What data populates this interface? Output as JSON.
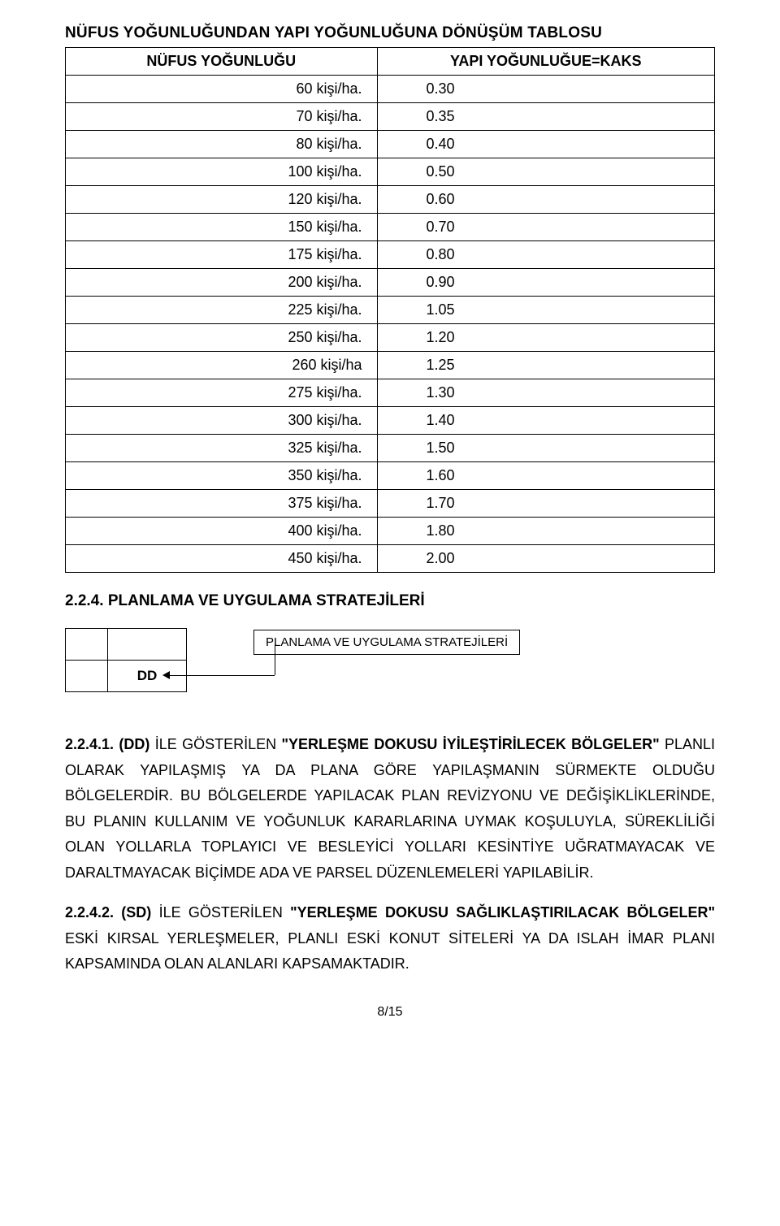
{
  "title": "NÜFUS YOĞUNLUĞUNDAN YAPI YOĞUNLUĞUNA DÖNÜŞÜM TABLOSU",
  "table": {
    "header_left": "NÜFUS YOĞUNLUĞU",
    "header_right": "YAPI YOĞUNLUĞUE=KAKS",
    "rows": [
      {
        "l": "60 kişi/ha.",
        "r": "0.30"
      },
      {
        "l": "70 kişi/ha.",
        "r": "0.35"
      },
      {
        "l": "80 kişi/ha.",
        "r": "0.40"
      },
      {
        "l": "100 kişi/ha.",
        "r": "0.50"
      },
      {
        "l": "120 kişi/ha.",
        "r": "0.60"
      },
      {
        "l": "150 kişi/ha.",
        "r": "0.70"
      },
      {
        "l": "175 kişi/ha.",
        "r": "0.80"
      },
      {
        "l": "200 kişi/ha.",
        "r": "0.90"
      },
      {
        "l": "225 kişi/ha.",
        "r": "1.05"
      },
      {
        "l": "250 kişi/ha.",
        "r": "1.20"
      },
      {
        "l": "260 kişi/ha",
        "r": "1.25"
      },
      {
        "l": "275 kişi/ha.",
        "r": "1.30"
      },
      {
        "l": "300 kişi/ha.",
        "r": "1.40"
      },
      {
        "l": "325 kişi/ha.",
        "r": "1.50"
      },
      {
        "l": "350 kişi/ha.",
        "r": "1.60"
      },
      {
        "l": "375 kişi/ha.",
        "r": "1.70"
      },
      {
        "l": "400 kişi/ha.",
        "r": "1.80"
      },
      {
        "l": "450 kişi/ha.",
        "r": "2.00"
      }
    ]
  },
  "section_heading": "2.2.4. PLANLAMA VE UYGULAMA STRATEJİLERİ",
  "diagram": {
    "dd_label": "DD",
    "callout": "PLANLAMA VE UYGULAMA STRATEJİLERİ"
  },
  "para1": {
    "lead": "2.2.4.1. (DD)",
    "mid1": " İLE GÖSTERİLEN ",
    "quoted": "\"YERLEŞME DOKUSU İYİLEŞTİRİLECEK BÖLGELER\"",
    "rest": " PLANLI OLARAK YAPILAŞMIŞ YA DA PLANA GÖRE YAPILAŞMANIN SÜRMEKTE OLDUĞU BÖLGELERDİR. BU BÖLGELERDE YAPILACAK PLAN REVİZYONU VE DEĞİŞİKLİKLERİNDE, BU PLANIN KULLANIM VE YOĞUNLUK KARARLARINA UYMAK KOŞULUYLA, SÜREKLİLİĞİ OLAN YOLLARLA TOPLAYICI VE BESLEYİCİ YOLLARI KESİNTİYE UĞRATMAYACAK VE DARALTMAYACAK BİÇİMDE ADA VE PARSEL DÜZENLEMELERİ YAPILABİLİR."
  },
  "para2": {
    "lead": "2.2.4.2. (SD)",
    "mid1": " İLE GÖSTERİLEN ",
    "quoted": "\"YERLEŞME DOKUSU SAĞLIKLAŞTIRILACAK BÖLGELER\"",
    "rest": " ESKİ KIRSAL YERLEŞMELER, PLANLI ESKİ KONUT SİTELERİ YA DA ISLAH İMAR PLANI KAPSAMINDA OLAN ALANLARI KAPSAMAKTADIR."
  },
  "page_number": "8/15"
}
